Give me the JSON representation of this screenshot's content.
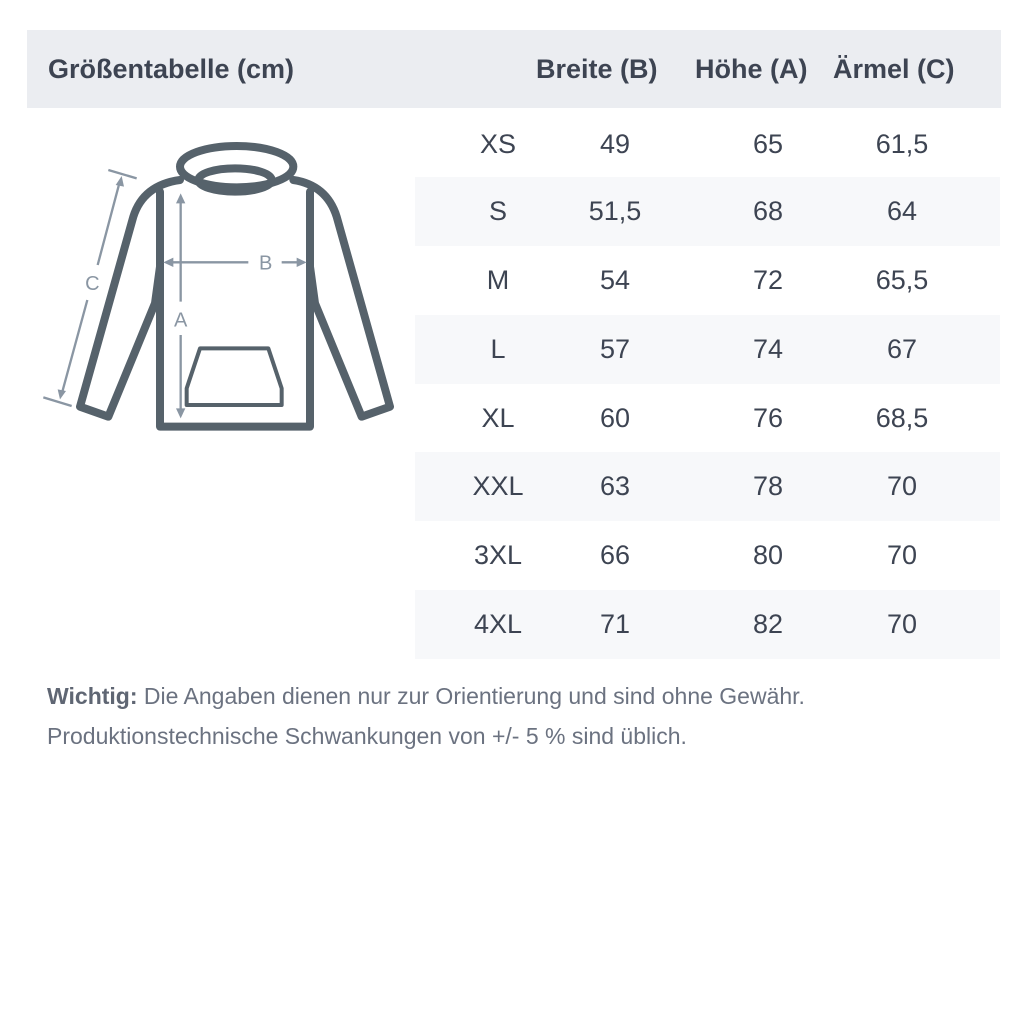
{
  "header": {
    "title": "Größentabelle (cm)",
    "columns": [
      "Breite (B)",
      "Höhe (A)",
      "Ärmel (C)"
    ]
  },
  "diagram": {
    "labels": {
      "width": "B",
      "height": "A",
      "sleeve": "C"
    }
  },
  "rows": [
    {
      "size": "XS",
      "breite": "49",
      "hoehe": "65",
      "aermel": "61,5"
    },
    {
      "size": "S",
      "breite": "51,5",
      "hoehe": "68",
      "aermel": "64"
    },
    {
      "size": "M",
      "breite": "54",
      "hoehe": "72",
      "aermel": "65,5"
    },
    {
      "size": "L",
      "breite": "57",
      "hoehe": "74",
      "aermel": "67"
    },
    {
      "size": "XL",
      "breite": "60",
      "hoehe": "76",
      "aermel": "68,5"
    },
    {
      "size": "XXL",
      "breite": "63",
      "hoehe": "78",
      "aermel": "70"
    },
    {
      "size": "3XL",
      "breite": "66",
      "hoehe": "80",
      "aermel": "70"
    },
    {
      "size": "4XL",
      "breite": "71",
      "hoehe": "82",
      "aermel": "70"
    }
  ],
  "note": {
    "label": "Wichtig:",
    "line1": " Die Angaben dienen nur zur Orientierung und sind ohne Gewähr.",
    "line2": "Produktionstechnische Schwankungen von +/- 5 % sind üblich."
  },
  "colors": {
    "text": "#3d4452",
    "header_bg": "#ebedf1",
    "stripe": "#f7f8fa",
    "outline": "#56626b",
    "measure": "#8a96a3"
  }
}
